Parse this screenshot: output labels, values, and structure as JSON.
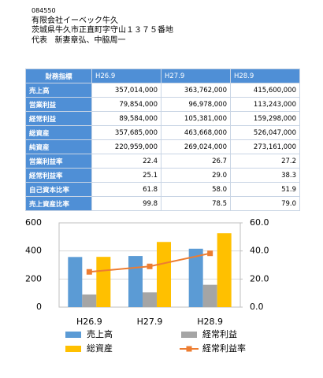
{
  "header": {
    "code": "084550",
    "company": "有限会社イーベック牛久",
    "address": "茨城県牛久市正直町字守山１３７５番地",
    "representative_label": "代表",
    "representative": "新妻章弘、中脇周一"
  },
  "table": {
    "columns": [
      "財務指標",
      "H26.9",
      "H27.9",
      "H28.9"
    ],
    "rows": [
      [
        "売上高",
        "357,014,000",
        "363,762,000",
        "415,600,000"
      ],
      [
        "営業利益",
        "79,854,000",
        "96,978,000",
        "113,243,000"
      ],
      [
        "経常利益",
        "89,584,000",
        "105,381,000",
        "159,298,000"
      ],
      [
        "総資産",
        "357,685,000",
        "463,668,000",
        "526,047,000"
      ],
      [
        "純資産",
        "220,959,000",
        "269,024,000",
        "273,161,000"
      ],
      [
        "営業利益率",
        "22.4",
        "26.7",
        "27.2"
      ],
      [
        "経常利益率",
        "25.1",
        "29.0",
        "38.3"
      ],
      [
        "自己資本比率",
        "61.8",
        "58.0",
        "51.9"
      ],
      [
        "売上資産比率",
        "99.8",
        "78.5",
        "79.0"
      ]
    ]
  },
  "chart_data": {
    "type": "bar",
    "categories": [
      "H26.9",
      "H27.9",
      "H28.9"
    ],
    "series": [
      {
        "name": "売上高",
        "color": "#5b9bd5",
        "values": [
          357,
          364,
          416
        ]
      },
      {
        "name": "経常利益",
        "color": "#a5a5a5",
        "values": [
          90,
          105,
          159
        ]
      },
      {
        "name": "総資産",
        "color": "#ffc000",
        "values": [
          358,
          464,
          526
        ]
      },
      {
        "name": "経常利益率",
        "color": "#ed7d31",
        "type": "line",
        "axis": "y2",
        "values": [
          25.1,
          29.0,
          38.3
        ]
      }
    ],
    "ylim": [
      0,
      600
    ],
    "yticks": [
      0,
      200,
      400,
      600
    ],
    "y2lim": [
      0,
      60
    ],
    "y2ticks": [
      {
        "value": 0,
        "label": "0.0"
      },
      {
        "value": 20,
        "label": "20.0"
      },
      {
        "value": 40,
        "label": "40.0"
      },
      {
        "value": 60,
        "label": "60.0"
      }
    ],
    "grid": true
  }
}
